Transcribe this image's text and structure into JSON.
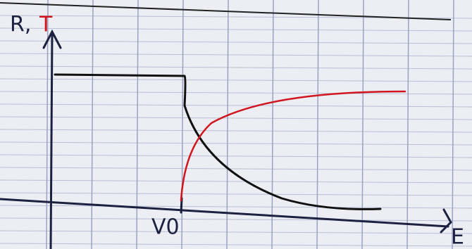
{
  "labels": {
    "r": "R,",
    "t": "T",
    "threshold": "V0",
    "x_axis": "E"
  }
}
